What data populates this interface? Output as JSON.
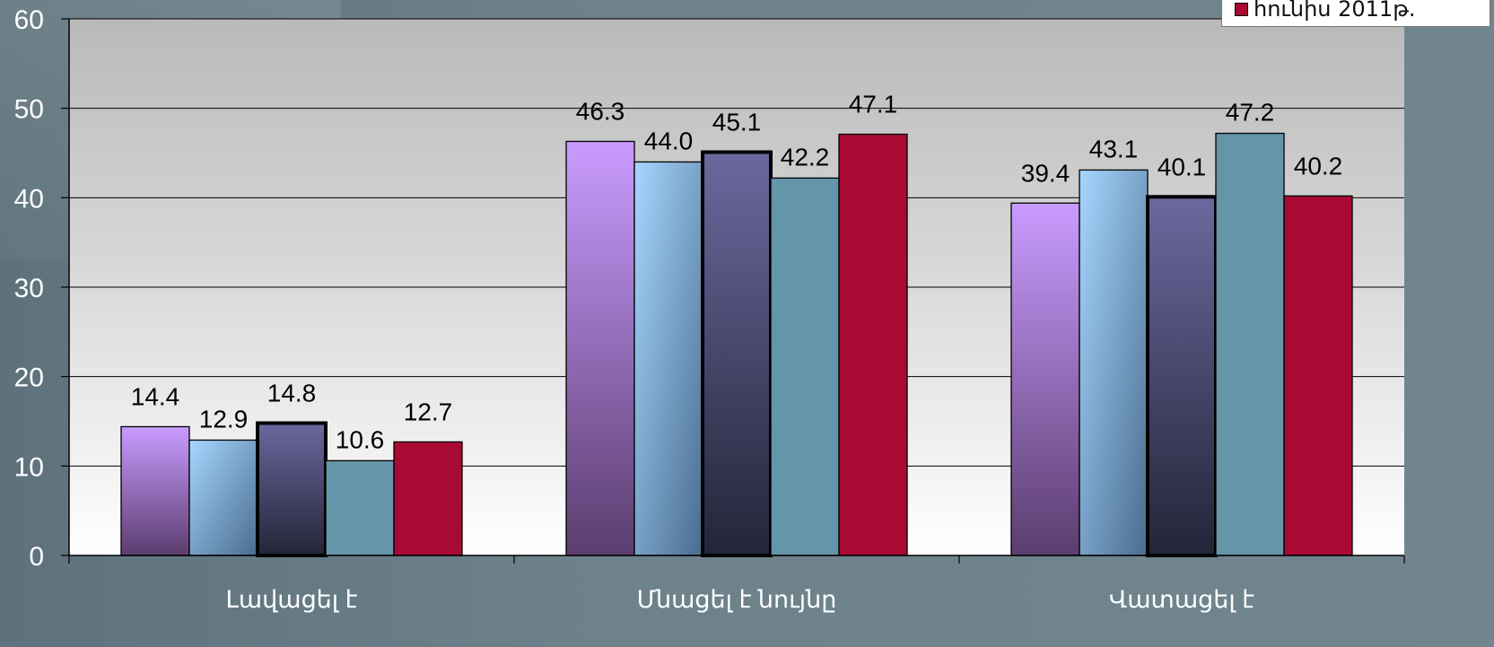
{
  "chart_data": {
    "type": "bar",
    "categories": [
      "Լավացել է",
      "Մնացել է նույնը",
      "Վատացել է"
    ],
    "series": [
      {
        "values": [
          14.4,
          46.3,
          39.4
        ],
        "color": "#c497f5"
      },
      {
        "values": [
          12.9,
          44.0,
          43.1
        ],
        "color": "#9fd0fb"
      },
      {
        "values": [
          14.8,
          45.1,
          40.1
        ],
        "color": "#5e5b8f"
      },
      {
        "values": [
          10.6,
          42.2,
          47.2
        ],
        "color": "#6595a8"
      },
      {
        "name": "հունիս 2011թ.",
        "values": [
          12.7,
          47.1,
          40.2
        ],
        "color": "#a80a34"
      }
    ],
    "y_ticks": [
      0,
      10,
      20,
      30,
      40,
      50,
      60
    ],
    "ylim": [
      0,
      60
    ],
    "value_labels": [
      [
        "14.4",
        "46.3",
        "39.4"
      ],
      [
        "12.9",
        "44.0",
        "43.1"
      ],
      [
        "14.8",
        "45.1",
        "40.1"
      ],
      [
        "10.6",
        "42.2",
        "47.2"
      ],
      [
        "12.7",
        "47.1",
        "40.2"
      ]
    ],
    "grid": true,
    "legend_position": "top-right"
  }
}
